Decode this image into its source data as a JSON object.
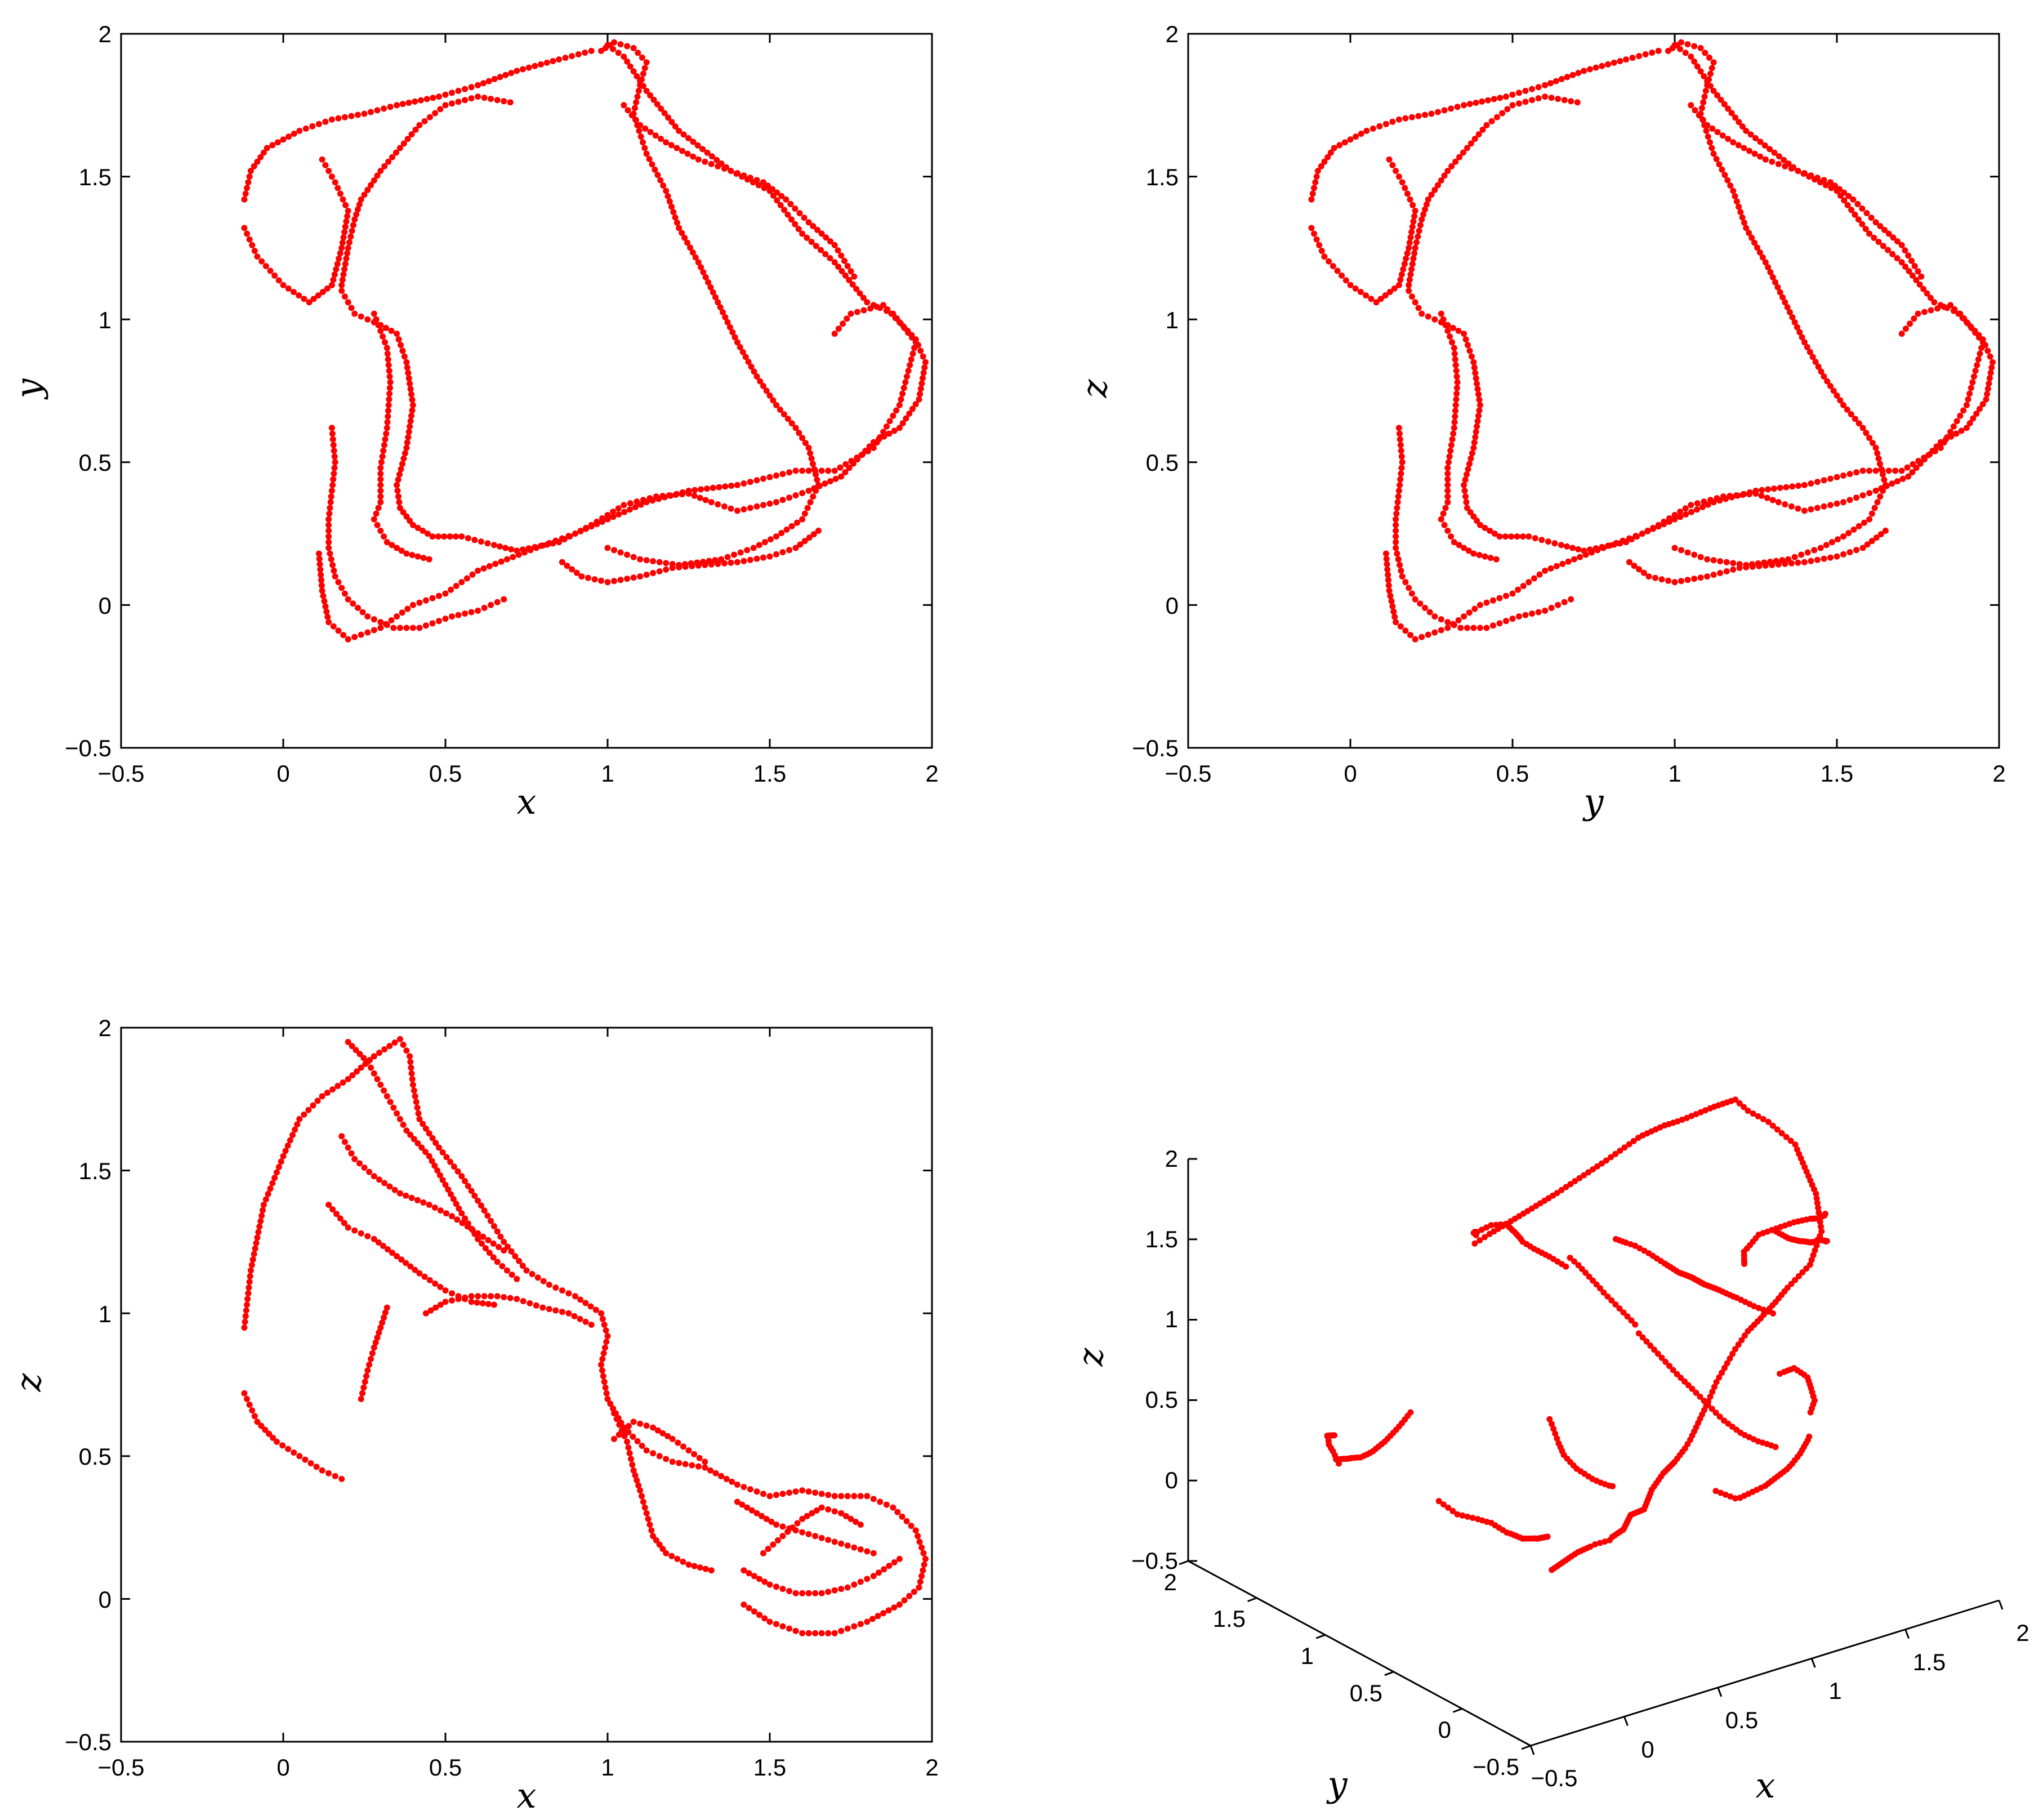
{
  "figure": {
    "marker_color": "#ff0000",
    "panels": {
      "xy": {
        "xlabel": "x",
        "ylabel": "y"
      },
      "yz": {
        "xlabel": "y",
        "ylabel": "z"
      },
      "xz": {
        "xlabel": "x",
        "ylabel": "z"
      },
      "xyz": {
        "xlabel": "x",
        "ylabel": "y",
        "zlabel": "z"
      }
    }
  },
  "chart_data": [
    {
      "id": "xy",
      "type": "scatter",
      "title": "",
      "xlabel": "x",
      "ylabel": "y",
      "xlim": [
        -0.5,
        2
      ],
      "ylim": [
        -0.5,
        2
      ],
      "xticks": [
        "−0.5",
        "0",
        "0.5",
        "1",
        "1.5",
        "2"
      ],
      "yticks": [
        "−0.5",
        "0",
        "0.5",
        "1",
        "1.5",
        "2"
      ],
      "grid": false,
      "color": "#ff0000",
      "polylines": [
        [
          [
            1.0,
            1.96
          ],
          [
            1.05,
            1.92
          ],
          [
            1.12,
            1.8
          ],
          [
            1.22,
            1.66
          ],
          [
            1.38,
            1.52
          ],
          [
            1.5,
            1.45
          ],
          [
            1.6,
            1.3
          ],
          [
            1.7,
            1.2
          ],
          [
            1.8,
            1.06
          ],
          [
            1.88,
            1.02
          ],
          [
            1.95,
            0.92
          ],
          [
            1.9,
            0.7
          ],
          [
            1.82,
            0.55
          ],
          [
            1.7,
            0.47
          ],
          [
            1.58,
            0.47
          ],
          [
            1.4,
            0.42
          ],
          [
            1.25,
            0.4
          ],
          [
            1.12,
            0.36
          ],
          [
            1.0,
            0.3
          ],
          [
            0.9,
            0.25
          ],
          [
            0.78,
            0.2
          ],
          [
            0.6,
            0.12
          ],
          [
            0.5,
            0.04
          ],
          [
            0.4,
            0.0
          ],
          [
            0.3,
            -0.08
          ],
          [
            0.2,
            -0.12
          ],
          [
            0.14,
            -0.06
          ],
          [
            0.12,
            0.05
          ],
          [
            0.11,
            0.18
          ]
        ],
        [
          [
            0.18,
            1.1
          ],
          [
            0.22,
            1.02
          ],
          [
            0.3,
            0.98
          ],
          [
            0.35,
            0.95
          ],
          [
            0.38,
            0.85
          ],
          [
            0.4,
            0.7
          ],
          [
            0.38,
            0.55
          ],
          [
            0.35,
            0.42
          ],
          [
            0.36,
            0.34
          ],
          [
            0.4,
            0.28
          ],
          [
            0.46,
            0.24
          ],
          [
            0.55,
            0.24
          ],
          [
            0.65,
            0.21
          ],
          [
            0.72,
            0.19
          ],
          [
            0.85,
            0.22
          ],
          [
            0.95,
            0.28
          ],
          [
            1.05,
            0.35
          ],
          [
            1.15,
            0.38
          ],
          [
            1.25,
            0.39
          ],
          [
            1.32,
            0.36
          ],
          [
            1.4,
            0.33
          ],
          [
            1.52,
            0.36
          ],
          [
            1.62,
            0.4
          ],
          [
            1.72,
            0.45
          ],
          [
            1.82,
            0.57
          ],
          [
            1.9,
            0.62
          ],
          [
            1.96,
            0.72
          ],
          [
            1.98,
            0.85
          ],
          [
            1.95,
            0.93
          ],
          [
            1.85,
            1.05
          ],
          [
            1.75,
            1.02
          ],
          [
            1.7,
            0.95
          ]
        ],
        [
          [
            0.98,
            1.94
          ],
          [
            1.02,
            1.97
          ],
          [
            1.08,
            1.95
          ],
          [
            1.12,
            1.9
          ],
          [
            1.1,
            1.82
          ],
          [
            1.08,
            1.72
          ],
          [
            1.12,
            1.58
          ],
          [
            1.18,
            1.45
          ],
          [
            1.22,
            1.32
          ],
          [
            1.28,
            1.2
          ],
          [
            1.34,
            1.06
          ],
          [
            1.4,
            0.92
          ],
          [
            1.46,
            0.8
          ],
          [
            1.52,
            0.7
          ],
          [
            1.58,
            0.62
          ],
          [
            1.62,
            0.55
          ],
          [
            1.65,
            0.42
          ],
          [
            1.6,
            0.3
          ],
          [
            1.52,
            0.24
          ],
          [
            1.45,
            0.2
          ],
          [
            1.35,
            0.16
          ],
          [
            1.22,
            0.14
          ],
          [
            1.1,
            0.16
          ],
          [
            1.0,
            0.2
          ]
        ],
        [
          [
            -0.12,
            1.42
          ],
          [
            -0.1,
            1.52
          ],
          [
            -0.05,
            1.6
          ],
          [
            0.05,
            1.66
          ],
          [
            0.15,
            1.7
          ],
          [
            0.25,
            1.72
          ],
          [
            0.35,
            1.75
          ],
          [
            0.48,
            1.78
          ],
          [
            0.6,
            1.82
          ],
          [
            0.72,
            1.87
          ],
          [
            0.85,
            1.91
          ],
          [
            0.95,
            1.94
          ]
        ],
        [
          [
            0.18,
            1.12
          ],
          [
            0.2,
            1.25
          ],
          [
            0.22,
            1.35
          ],
          [
            0.24,
            1.42
          ],
          [
            0.3,
            1.52
          ],
          [
            0.36,
            1.6
          ],
          [
            0.42,
            1.68
          ],
          [
            0.5,
            1.75
          ],
          [
            0.6,
            1.78
          ],
          [
            0.7,
            1.76
          ]
        ],
        [
          [
            -0.12,
            1.32
          ],
          [
            -0.08,
            1.22
          ],
          [
            0.0,
            1.12
          ],
          [
            0.08,
            1.06
          ],
          [
            0.15,
            1.12
          ],
          [
            0.18,
            1.25
          ],
          [
            0.2,
            1.38
          ],
          [
            0.16,
            1.48
          ],
          [
            0.12,
            1.56
          ]
        ],
        [
          [
            0.28,
            1.02
          ],
          [
            0.32,
            0.9
          ],
          [
            0.33,
            0.78
          ],
          [
            0.32,
            0.62
          ],
          [
            0.3,
            0.48
          ],
          [
            0.3,
            0.36
          ],
          [
            0.28,
            0.3
          ],
          [
            0.32,
            0.22
          ],
          [
            0.38,
            0.18
          ],
          [
            0.45,
            0.16
          ]
        ],
        [
          [
            0.15,
            0.62
          ],
          [
            0.16,
            0.5
          ],
          [
            0.15,
            0.4
          ],
          [
            0.14,
            0.3
          ],
          [
            0.14,
            0.2
          ],
          [
            0.16,
            0.1
          ],
          [
            0.2,
            0.02
          ],
          [
            0.26,
            -0.04
          ],
          [
            0.34,
            -0.08
          ],
          [
            0.42,
            -0.08
          ],
          [
            0.52,
            -0.04
          ],
          [
            0.6,
            -0.02
          ],
          [
            0.68,
            0.02
          ]
        ],
        [
          [
            1.05,
            1.75
          ],
          [
            1.1,
            1.68
          ],
          [
            1.18,
            1.62
          ],
          [
            1.28,
            1.56
          ],
          [
            1.38,
            1.52
          ],
          [
            1.48,
            1.48
          ],
          [
            1.55,
            1.42
          ],
          [
            1.62,
            1.34
          ],
          [
            1.7,
            1.26
          ],
          [
            1.76,
            1.15
          ]
        ],
        [
          [
            0.86,
            0.15
          ],
          [
            0.92,
            0.1
          ],
          [
            1.0,
            0.08
          ],
          [
            1.1,
            0.1
          ],
          [
            1.2,
            0.13
          ],
          [
            1.3,
            0.14
          ],
          [
            1.4,
            0.15
          ],
          [
            1.5,
            0.17
          ],
          [
            1.58,
            0.2
          ],
          [
            1.65,
            0.26
          ]
        ]
      ]
    },
    {
      "id": "yz",
      "type": "scatter",
      "title": "",
      "xlabel": "y",
      "ylabel": "z",
      "xlim": [
        -0.5,
        2
      ],
      "ylim": [
        -0.5,
        2
      ],
      "xticks": [
        "−0.5",
        "0",
        "0.5",
        "1",
        "1.5",
        "2"
      ],
      "yticks": [
        "−0.5",
        "0",
        "0.5",
        "1",
        "1.5",
        "2"
      ],
      "grid": false,
      "color": "#ff0000",
      "same_as": "xy"
    },
    {
      "id": "xz",
      "type": "scatter",
      "title": "",
      "xlabel": "x",
      "ylabel": "z",
      "xlim": [
        -0.5,
        2
      ],
      "ylim": [
        -0.5,
        2
      ],
      "xticks": [
        "−0.5",
        "0",
        "0.5",
        "1",
        "1.5",
        "2"
      ],
      "yticks": [
        "−0.5",
        "0",
        "0.5",
        "1",
        "1.5",
        "2"
      ],
      "grid": false,
      "color": "#ff0000",
      "polylines": [
        [
          [
            -0.12,
            0.95
          ],
          [
            -0.1,
            1.15
          ],
          [
            -0.06,
            1.38
          ],
          [
            0.0,
            1.55
          ],
          [
            0.05,
            1.68
          ],
          [
            0.12,
            1.76
          ],
          [
            0.2,
            1.82
          ],
          [
            0.28,
            1.9
          ],
          [
            0.36,
            1.96
          ],
          [
            0.39,
            1.9
          ],
          [
            0.4,
            1.8
          ],
          [
            0.42,
            1.68
          ],
          [
            0.48,
            1.58
          ],
          [
            0.55,
            1.48
          ],
          [
            0.62,
            1.36
          ],
          [
            0.68,
            1.25
          ],
          [
            0.75,
            1.15
          ],
          [
            0.82,
            1.1
          ],
          [
            0.9,
            1.06
          ],
          [
            0.98,
            1.0
          ],
          [
            1.0,
            0.92
          ],
          [
            0.98,
            0.82
          ],
          [
            1.0,
            0.7
          ],
          [
            1.05,
            0.6
          ],
          [
            1.12,
            0.52
          ],
          [
            1.2,
            0.48
          ],
          [
            1.3,
            0.46
          ],
          [
            1.4,
            0.4
          ],
          [
            1.5,
            0.36
          ],
          [
            1.6,
            0.38
          ],
          [
            1.7,
            0.36
          ],
          [
            1.8,
            0.36
          ],
          [
            1.88,
            0.32
          ],
          [
            1.95,
            0.24
          ],
          [
            1.98,
            0.14
          ],
          [
            1.96,
            0.04
          ],
          [
            1.9,
            -0.02
          ],
          [
            1.8,
            -0.08
          ],
          [
            1.7,
            -0.12
          ],
          [
            1.6,
            -0.12
          ],
          [
            1.5,
            -0.08
          ],
          [
            1.42,
            -0.02
          ]
        ],
        [
          [
            -0.12,
            0.72
          ],
          [
            -0.08,
            0.62
          ],
          [
            -0.02,
            0.55
          ],
          [
            0.05,
            0.5
          ],
          [
            0.12,
            0.45
          ],
          [
            0.18,
            0.42
          ]
        ],
        [
          [
            0.2,
            1.95
          ],
          [
            0.26,
            1.88
          ],
          [
            0.3,
            1.8
          ],
          [
            0.34,
            1.72
          ],
          [
            0.38,
            1.64
          ],
          [
            0.45,
            1.55
          ],
          [
            0.5,
            1.45
          ],
          [
            0.55,
            1.35
          ],
          [
            0.6,
            1.26
          ],
          [
            0.66,
            1.18
          ],
          [
            0.72,
            1.12
          ]
        ],
        [
          [
            0.18,
            1.62
          ],
          [
            0.22,
            1.54
          ],
          [
            0.28,
            1.48
          ],
          [
            0.36,
            1.42
          ],
          [
            0.45,
            1.38
          ],
          [
            0.52,
            1.34
          ],
          [
            0.6,
            1.28
          ],
          [
            0.68,
            1.22
          ]
        ],
        [
          [
            0.14,
            1.38
          ],
          [
            0.2,
            1.3
          ],
          [
            0.28,
            1.26
          ],
          [
            0.35,
            1.2
          ],
          [
            0.42,
            1.14
          ],
          [
            0.5,
            1.08
          ],
          [
            0.58,
            1.04
          ],
          [
            0.65,
            1.03
          ]
        ],
        [
          [
            0.44,
            1.0
          ],
          [
            0.5,
            1.04
          ],
          [
            0.58,
            1.06
          ],
          [
            0.66,
            1.06
          ],
          [
            0.72,
            1.05
          ],
          [
            0.8,
            1.02
          ],
          [
            0.88,
            1.0
          ],
          [
            0.95,
            0.96
          ]
        ],
        [
          [
            0.32,
            1.02
          ],
          [
            0.3,
            0.95
          ],
          [
            0.28,
            0.88
          ],
          [
            0.26,
            0.8
          ],
          [
            0.24,
            0.7
          ]
        ],
        [
          [
            1.02,
            0.65
          ],
          [
            1.06,
            0.55
          ],
          [
            1.08,
            0.45
          ],
          [
            1.1,
            0.38
          ],
          [
            1.12,
            0.3
          ],
          [
            1.14,
            0.22
          ],
          [
            1.18,
            0.16
          ],
          [
            1.25,
            0.12
          ],
          [
            1.32,
            0.1
          ]
        ],
        [
          [
            1.02,
            0.56
          ],
          [
            1.08,
            0.62
          ],
          [
            1.14,
            0.6
          ],
          [
            1.2,
            0.56
          ],
          [
            1.25,
            0.52
          ],
          [
            1.3,
            0.48
          ]
        ],
        [
          [
            1.4,
            0.34
          ],
          [
            1.46,
            0.3
          ],
          [
            1.52,
            0.26
          ],
          [
            1.58,
            0.24
          ],
          [
            1.64,
            0.22
          ],
          [
            1.7,
            0.2
          ],
          [
            1.76,
            0.18
          ],
          [
            1.82,
            0.16
          ]
        ],
        [
          [
            1.48,
            0.16
          ],
          [
            1.54,
            0.22
          ],
          [
            1.6,
            0.28
          ],
          [
            1.66,
            0.32
          ],
          [
            1.72,
            0.3
          ],
          [
            1.78,
            0.26
          ]
        ],
        [
          [
            1.42,
            0.1
          ],
          [
            1.5,
            0.05
          ],
          [
            1.58,
            0.02
          ],
          [
            1.66,
            0.02
          ],
          [
            1.74,
            0.04
          ],
          [
            1.82,
            0.08
          ],
          [
            1.9,
            0.14
          ]
        ]
      ]
    },
    {
      "id": "xyz",
      "type": "scatter3d",
      "title": "",
      "xlabel": "x",
      "ylabel": "y",
      "zlabel": "z",
      "xlim": [
        -0.5,
        2
      ],
      "ylim": [
        -0.5,
        2
      ],
      "zlim": [
        -0.5,
        2
      ],
      "xticks": [
        "−0.5",
        "0",
        "0.5",
        "1",
        "1.5",
        "2"
      ],
      "yticks": [
        "−0.5",
        "0",
        "0.5",
        "1",
        "1.5",
        "2"
      ],
      "zticks": [
        "−0.5",
        "0",
        "0.5",
        "1",
        "1.5",
        "2"
      ],
      "grid": false,
      "color": "#ff0000",
      "source": "xy+xz"
    }
  ]
}
